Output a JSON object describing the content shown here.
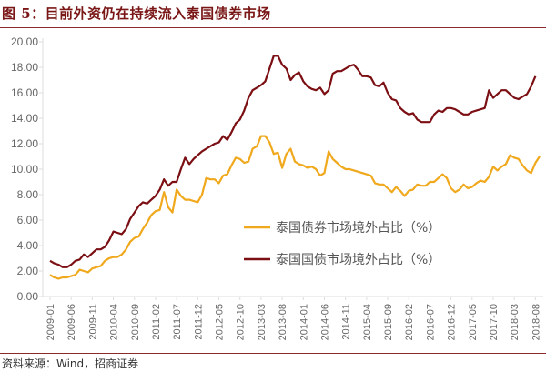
{
  "title": "图 5：目前外资仍在持续流入泰国债券市场",
  "source": "资料来源：Wind，招商证券",
  "chart_data": {
    "type": "line",
    "title": "图 5：目前外资仍在持续流入泰国债券市场",
    "xlabel": "",
    "ylabel": "",
    "ylim": [
      0,
      20
    ],
    "yticks": [
      "0.00",
      "2.00",
      "4.00",
      "6.00",
      "8.00",
      "10.00",
      "12.00",
      "14.00",
      "16.00",
      "18.00",
      "20.00"
    ],
    "x_start": "2009-01",
    "x_end": "2018-08",
    "xtick_labels": [
      "2009-01",
      "2009-06",
      "2009-11",
      "2010-04",
      "2010-09",
      "2011-02",
      "2011-07",
      "2011-12",
      "2012-05",
      "2012-10",
      "2013-03",
      "2013-08",
      "2014-01",
      "2014-06",
      "2014-11",
      "2015-04",
      "2015-09",
      "2016-02",
      "2016-07",
      "2016-12",
      "2017-05",
      "2017-10",
      "2018-03",
      "2018-08"
    ],
    "grid": false,
    "legend_placement": "center-right",
    "series": [
      {
        "name": "泰国债券市场境外占比（%）",
        "color": "#f0a81c",
        "values": [
          1.7,
          1.5,
          1.4,
          1.5,
          1.5,
          1.6,
          1.7,
          2.1,
          2.0,
          1.9,
          2.2,
          2.3,
          2.4,
          2.8,
          3.0,
          3.1,
          3.1,
          3.3,
          3.7,
          4.3,
          4.6,
          4.7,
          5.3,
          5.8,
          6.4,
          6.7,
          6.8,
          8.2,
          7.0,
          6.6,
          8.4,
          7.9,
          7.6,
          7.6,
          7.5,
          7.4,
          8.0,
          9.3,
          9.2,
          9.2,
          8.9,
          9.5,
          9.6,
          10.3,
          10.9,
          10.8,
          10.5,
          10.6,
          11.6,
          11.8,
          12.6,
          12.6,
          12.1,
          11.2,
          11.3,
          10.1,
          11.2,
          11.6,
          10.6,
          10.4,
          10.3,
          10.1,
          10.2,
          10.0,
          9.5,
          9.7,
          11.4,
          10.8,
          10.5,
          10.2,
          10.0,
          10.0,
          9.9,
          9.8,
          9.7,
          9.6,
          9.5,
          8.9,
          8.8,
          8.8,
          8.5,
          8.2,
          8.6,
          8.3,
          7.9,
          8.3,
          8.4,
          8.8,
          8.7,
          8.7,
          9.0,
          9.0,
          9.3,
          9.6,
          9.3,
          8.5,
          8.2,
          8.4,
          8.8,
          8.5,
          8.6,
          8.9,
          9.1,
          9.0,
          9.4,
          10.2,
          9.9,
          10.2,
          10.4,
          11.1,
          10.9,
          10.8,
          10.3,
          9.9,
          9.7,
          10.5,
          11.0
        ]
      },
      {
        "name": "泰国国债市场境外占比（%）",
        "color": "#7b0f13",
        "values": [
          2.8,
          2.6,
          2.5,
          2.3,
          2.3,
          2.5,
          2.8,
          2.9,
          3.3,
          3.1,
          3.4,
          3.7,
          3.7,
          3.9,
          4.4,
          5.1,
          5.0,
          4.9,
          5.3,
          6.1,
          6.6,
          7.1,
          7.4,
          7.3,
          7.6,
          7.9,
          8.4,
          9.2,
          8.7,
          9.0,
          9.0,
          10.0,
          10.9,
          10.4,
          10.8,
          11.1,
          11.4,
          11.6,
          11.8,
          12.0,
          12.1,
          12.6,
          12.3,
          12.9,
          13.6,
          13.9,
          14.6,
          15.6,
          16.2,
          16.4,
          16.6,
          16.9,
          17.9,
          18.9,
          18.9,
          18.2,
          17.9,
          17.0,
          17.4,
          17.6,
          16.9,
          16.5,
          16.3,
          16.2,
          16.4,
          15.9,
          16.2,
          17.5,
          17.7,
          17.7,
          17.9,
          18.1,
          18.2,
          17.8,
          17.3,
          17.3,
          17.2,
          16.6,
          16.5,
          16.8,
          16.0,
          15.5,
          15.4,
          14.8,
          14.5,
          14.3,
          14.4,
          13.9,
          13.7,
          13.7,
          13.7,
          14.3,
          14.6,
          14.5,
          14.8,
          14.8,
          14.7,
          14.5,
          14.3,
          14.3,
          14.5,
          14.6,
          14.7,
          14.8,
          16.2,
          15.6,
          15.9,
          16.2,
          16.2,
          15.9,
          15.6,
          15.5,
          15.7,
          15.9,
          16.5,
          17.3
        ]
      }
    ]
  }
}
